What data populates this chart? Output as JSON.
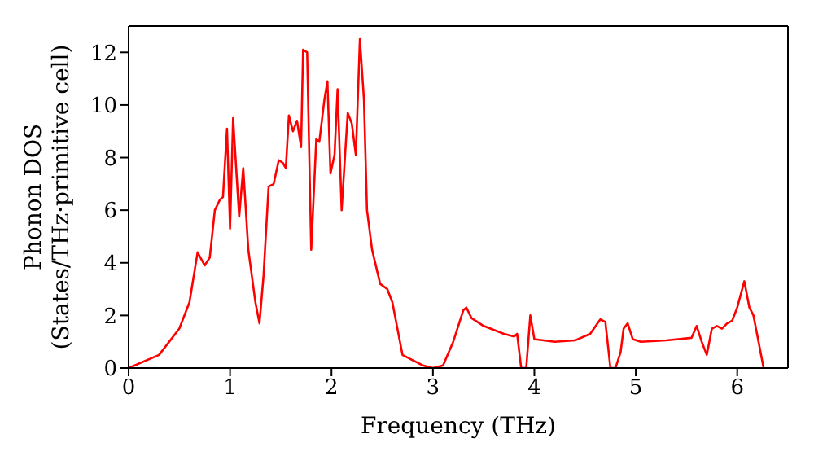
{
  "chart_data": {
    "type": "line",
    "xlabel": "Frequency (THz)",
    "ylabel": "Phonon DOS\n(States/THz·primitive cell)",
    "xlim": [
      0,
      6.5
    ],
    "xticks": [
      0,
      1,
      2,
      3,
      4,
      5,
      6
    ],
    "ylim": [
      0,
      13
    ],
    "yticks": [
      0,
      2,
      4,
      6,
      8,
      10,
      12
    ],
    "grid": false,
    "legend": false,
    "marker": "none",
    "line_style": "solid",
    "x": [
      0,
      0.3,
      0.5,
      0.6,
      0.68,
      0.75,
      0.8,
      0.85,
      0.9,
      0.93,
      0.97,
      1.0,
      1.03,
      1.09,
      1.13,
      1.18,
      1.25,
      1.29,
      1.33,
      1.38,
      1.43,
      1.48,
      1.52,
      1.55,
      1.58,
      1.62,
      1.66,
      1.7,
      1.72,
      1.76,
      1.8,
      1.85,
      1.88,
      1.93,
      1.96,
      1.99,
      2.03,
      2.06,
      2.1,
      2.16,
      2.2,
      2.24,
      2.28,
      2.32,
      2.35,
      2.4,
      2.48,
      2.55,
      2.6,
      2.7,
      2.8,
      2.9,
      3.0,
      3.1,
      3.2,
      3.3,
      3.33,
      3.38,
      3.5,
      3.7,
      3.8,
      3.83,
      3.87,
      3.92,
      3.96,
      4.0,
      4.2,
      4.4,
      4.55,
      4.65,
      4.7,
      4.75,
      4.8,
      4.85,
      4.88,
      4.92,
      4.97,
      5.05,
      5.3,
      5.55,
      5.6,
      5.65,
      5.7,
      5.75,
      5.8,
      5.85,
      5.9,
      5.95,
      6.0,
      6.07,
      6.12,
      6.16,
      6.2,
      6.26
    ],
    "series": [
      {
        "color": "#ff0000",
        "values": [
          0,
          0.5,
          1.5,
          2.5,
          4.4,
          3.9,
          4.2,
          6.0,
          6.4,
          6.5,
          9.1,
          5.3,
          9.5,
          5.75,
          7.6,
          4.5,
          2.5,
          1.7,
          3.5,
          6.9,
          7.0,
          7.9,
          7.8,
          7.6,
          9.6,
          9.0,
          9.4,
          8.4,
          12.1,
          12.0,
          4.5,
          8.7,
          8.6,
          10.2,
          10.9,
          7.4,
          8.1,
          10.6,
          6.0,
          9.7,
          9.3,
          8.1,
          12.5,
          10.2,
          6.0,
          4.5,
          3.2,
          3.0,
          2.5,
          0.5,
          0.3,
          0.1,
          0,
          0.1,
          1.0,
          2.2,
          2.3,
          1.9,
          1.6,
          1.3,
          1.2,
          1.3,
          0,
          0,
          2.0,
          1.1,
          1.0,
          1.05,
          1.3,
          1.85,
          1.75,
          0,
          0,
          0.6,
          1.5,
          1.7,
          1.1,
          1.0,
          1.05,
          1.15,
          1.6,
          1.0,
          0.5,
          1.5,
          1.6,
          1.5,
          1.7,
          1.8,
          2.3,
          3.3,
          2.3,
          2.0,
          1.2,
          0
        ]
      }
    ]
  }
}
